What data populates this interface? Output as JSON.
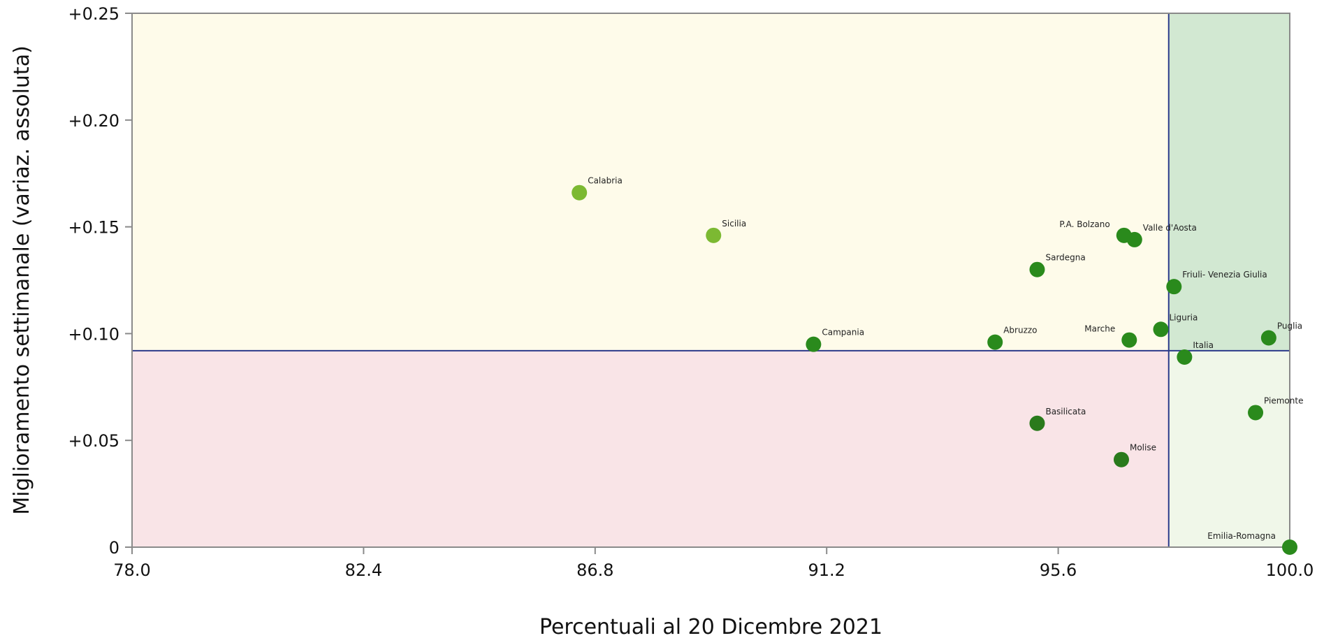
{
  "chart_data": {
    "type": "scatter",
    "xlabel": "Percentuali al 20 Dicembre 2021",
    "ylabel": "Miglioramento settimanale (variaz. assoluta)",
    "xlim": [
      78.0,
      100.0
    ],
    "ylim": [
      0,
      0.25
    ],
    "x_ticks": [
      {
        "value": 78.0,
        "label": "78.0"
      },
      {
        "value": 82.4,
        "label": "82.4"
      },
      {
        "value": 86.8,
        "label": "86.8"
      },
      {
        "value": 91.2,
        "label": "91.2"
      },
      {
        "value": 95.6,
        "label": "95.6"
      },
      {
        "value": 100.0,
        "label": "100.0"
      }
    ],
    "y_ticks": [
      {
        "value": 0,
        "label": "0"
      },
      {
        "value": 0.05,
        "label": "+0.05"
      },
      {
        "value": 0.1,
        "label": "+0.10"
      },
      {
        "value": 0.15,
        "label": "+0.15"
      },
      {
        "value": 0.2,
        "label": "+0.20"
      },
      {
        "value": 0.25,
        "label": "+0.25"
      }
    ],
    "grid": false,
    "reference_lines": {
      "x": 97.7,
      "y": 0.092
    },
    "quadrant_colors": {
      "top_left": "#fefbea",
      "top_right": "#d2e8d2",
      "bottom_left": "#f9e4e7",
      "bottom_right": "#f0f7e9"
    },
    "reference_line_color": "#2b3a8a",
    "points": [
      {
        "label": "Calabria",
        "x": 86.5,
        "y": 0.166,
        "color": "#7cb932",
        "label_side": "right"
      },
      {
        "label": "Sicilia",
        "x": 89.05,
        "y": 0.146,
        "color": "#7cb932",
        "label_side": "right"
      },
      {
        "label": "Campania",
        "x": 90.95,
        "y": 0.095,
        "color": "#2a8a1c",
        "label_side": "right"
      },
      {
        "label": "Abruzzo",
        "x": 94.4,
        "y": 0.096,
        "color": "#2a8a1c",
        "label_side": "right"
      },
      {
        "label": "Sardegna",
        "x": 95.2,
        "y": 0.13,
        "color": "#2a8a1c",
        "label_side": "right"
      },
      {
        "label": "Basilicata",
        "x": 95.2,
        "y": 0.058,
        "color": "#2a7a1c",
        "label_side": "right"
      },
      {
        "label": "Marche",
        "x": 96.95,
        "y": 0.097,
        "color": "#2a8a1c",
        "label_side": "left"
      },
      {
        "label": "Molise",
        "x": 96.8,
        "y": 0.041,
        "color": "#2a7a1c",
        "label_side": "right"
      },
      {
        "label": "P.A. Bolzano",
        "x": 96.85,
        "y": 0.146,
        "color": "#2a8a1c",
        "label_side": "left"
      },
      {
        "label": "Valle d'Aosta",
        "x": 97.05,
        "y": 0.144,
        "color": "#2a8a1c",
        "label_side": "right"
      },
      {
        "label": "Liguria",
        "x": 97.55,
        "y": 0.102,
        "color": "#2a8a1c",
        "label_side": "right"
      },
      {
        "label": "Friuli- Venezia Giulia",
        "x": 97.8,
        "y": 0.122,
        "color": "#2a8a1c",
        "label_side": "right"
      },
      {
        "label": "Italia",
        "x": 98.0,
        "y": 0.089,
        "color": "#2a8a1c",
        "label_side": "right"
      },
      {
        "label": "Piemonte",
        "x": 99.35,
        "y": 0.063,
        "color": "#2a8a1c",
        "label_side": "right"
      },
      {
        "label": "Puglia",
        "x": 99.6,
        "y": 0.098,
        "color": "#2a8a1c",
        "label_side": "right"
      },
      {
        "label": "Emilia-Romagna",
        "x": 100.0,
        "y": 0.0,
        "color": "#2a8a1c",
        "label_side": "left"
      }
    ]
  }
}
